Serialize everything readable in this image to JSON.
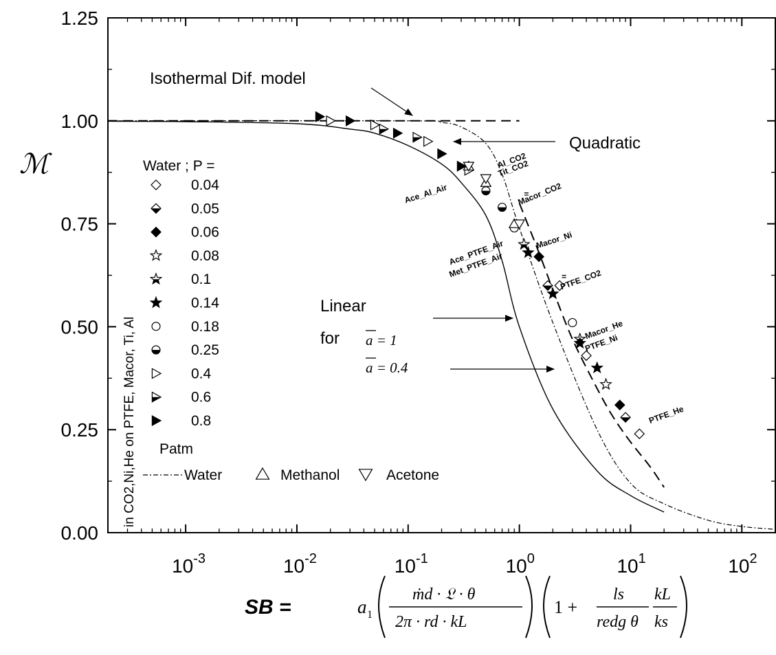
{
  "chart_data": {
    "type": "scatter",
    "x_scale": "log",
    "xlim": [
      0.0002,
      200
    ],
    "ylim": [
      0,
      1.25
    ],
    "x_ticks": [
      {
        "value": 0.001,
        "base": "10",
        "exp": "-3"
      },
      {
        "value": 0.01,
        "base": "10",
        "exp": "-2"
      },
      {
        "value": 0.1,
        "base": "10",
        "exp": "-1"
      },
      {
        "value": 1,
        "base": "10",
        "exp": "0"
      },
      {
        "value": 10,
        "base": "10",
        "exp": "1"
      },
      {
        "value": 100,
        "base": "10",
        "exp": "2"
      }
    ],
    "y_ticks": [
      {
        "value": 0,
        "label": "0.00"
      },
      {
        "value": 0.25,
        "label": "0.25"
      },
      {
        "value": 0.5,
        "label": "0.50"
      },
      {
        "value": 0.75,
        "label": "0.75"
      },
      {
        "value": 1.0,
        "label": "1.00"
      },
      {
        "value": 1.25,
        "label": "1.25"
      }
    ],
    "ylabel": "ℳ",
    "xlabel": {
      "prefix": "SB =",
      "a": "a",
      "a_sub": "1",
      "num1": "ṁd · 𝔏 · θ",
      "den1": "2π · rd · kL",
      "one": "1 +",
      "num2": "ls",
      "den2": "redg θ",
      "num3": "kL",
      "den3": "ks"
    },
    "side_label": "in CO2,Ni,He on PTFE, Macor, Ti, Al",
    "legend": {
      "title": "Water ; P =",
      "entries": [
        {
          "label": "0.04",
          "marker": "diamond-open"
        },
        {
          "label": "0.05",
          "marker": "diamond-half"
        },
        {
          "label": "0.06",
          "marker": "diamond-filled"
        },
        {
          "label": "0.08",
          "marker": "star-open"
        },
        {
          "label": "0.1",
          "marker": "star-half"
        },
        {
          "label": "0.14",
          "marker": "star-filled"
        },
        {
          "label": "0.18",
          "marker": "circle-open"
        },
        {
          "label": "0.25",
          "marker": "circle-half"
        },
        {
          "label": "0.4",
          "marker": "tri-right-open"
        },
        {
          "label": "0.6",
          "marker": "tri-right-half"
        },
        {
          "label": "0.8",
          "marker": "tri-right-filled"
        }
      ],
      "unit": "Patm",
      "bottom_row": [
        {
          "label": "Water",
          "marker": "dash-dot-line"
        },
        {
          "label": "Methanol",
          "marker": "tri-up-open"
        },
        {
          "label": "Acetone",
          "marker": "tri-down-open"
        }
      ]
    },
    "annotations": {
      "isothermal": "Isothermal Dif. model",
      "quadratic": "Quadratic",
      "linear": "Linear",
      "for": "for",
      "a1": "a = 1",
      "a04": "a = 0.4"
    },
    "curves": [
      {
        "name": "Isothermal Dif. model",
        "style": "dashed",
        "points": [
          [
            0.0002,
            1.0
          ],
          [
            1.0,
            1.0
          ]
        ]
      },
      {
        "name": "Linear a = 1",
        "style": "solid",
        "points": [
          [
            0.0002,
            0.999
          ],
          [
            0.001,
            0.998
          ],
          [
            0.01,
            0.993
          ],
          [
            0.03,
            0.98
          ],
          [
            0.05,
            0.97
          ],
          [
            0.1,
            0.94
          ],
          [
            0.2,
            0.895
          ],
          [
            0.3,
            0.85
          ],
          [
            0.5,
            0.77
          ],
          [
            0.7,
            0.66
          ],
          [
            1.0,
            0.5
          ],
          [
            2.0,
            0.3
          ],
          [
            5.0,
            0.15
          ],
          [
            10.0,
            0.09
          ],
          [
            20.0,
            0.05
          ]
        ]
      },
      {
        "name": "Quadratic",
        "style": "dash-dot",
        "points": [
          [
            0.0002,
            1.0
          ],
          [
            0.1,
            1.0
          ],
          [
            0.2,
            0.996
          ],
          [
            0.3,
            0.985
          ],
          [
            0.5,
            0.945
          ],
          [
            0.7,
            0.87
          ],
          [
            1.0,
            0.74
          ],
          [
            2.0,
            0.51
          ],
          [
            5.0,
            0.25
          ],
          [
            10.0,
            0.12
          ],
          [
            20.0,
            0.07
          ],
          [
            50.0,
            0.03
          ],
          [
            100.0,
            0.015
          ],
          [
            200.0,
            0.008
          ]
        ]
      },
      {
        "name": "Linear a = 0.4",
        "style": "dashed",
        "points": [
          [
            1.0,
            0.8
          ],
          [
            1.5,
            0.68
          ],
          [
            2.0,
            0.59
          ],
          [
            3.0,
            0.47
          ],
          [
            5.0,
            0.35
          ],
          [
            7.0,
            0.28
          ],
          [
            10.0,
            0.22
          ],
          [
            15.0,
            0.16
          ],
          [
            20.0,
            0.11
          ]
        ]
      }
    ],
    "series": [
      {
        "name": "0.04",
        "marker": "diamond-open",
        "points": [
          [
            2.3,
            0.6
          ],
          [
            4.0,
            0.43
          ],
          [
            12.0,
            0.24
          ]
        ]
      },
      {
        "name": "0.05",
        "marker": "diamond-half",
        "points": [
          [
            1.8,
            0.6
          ],
          [
            9.0,
            0.28
          ]
        ]
      },
      {
        "name": "0.06",
        "marker": "diamond-filled",
        "points": [
          [
            1.5,
            0.67
          ],
          [
            8.0,
            0.31
          ]
        ]
      },
      {
        "name": "0.08",
        "marker": "star-open",
        "points": [
          [
            6.0,
            0.36
          ]
        ]
      },
      {
        "name": "0.1",
        "marker": "star-half",
        "points": [
          [
            1.1,
            0.7
          ],
          [
            3.5,
            0.47
          ]
        ]
      },
      {
        "name": "0.14",
        "marker": "star-filled",
        "points": [
          [
            1.2,
            0.68
          ],
          [
            2.0,
            0.58
          ],
          [
            3.5,
            0.46
          ],
          [
            5.0,
            0.4
          ]
        ]
      },
      {
        "name": "0.18",
        "marker": "circle-open",
        "points": [
          [
            0.9,
            0.74
          ],
          [
            3.0,
            0.51
          ]
        ]
      },
      {
        "name": "0.25",
        "marker": "circle-half",
        "points": [
          [
            0.5,
            0.83
          ],
          [
            0.7,
            0.79
          ]
        ]
      },
      {
        "name": "0.4",
        "marker": "tri-right-open",
        "points": [
          [
            0.02,
            1.0
          ],
          [
            0.05,
            0.99
          ],
          [
            0.15,
            0.95
          ],
          [
            0.35,
            0.88
          ]
        ]
      },
      {
        "name": "0.6",
        "marker": "tri-right-half",
        "points": [
          [
            0.06,
            0.98
          ],
          [
            0.12,
            0.96
          ]
        ]
      },
      {
        "name": "0.8",
        "marker": "tri-right-filled",
        "points": [
          [
            0.016,
            1.01
          ],
          [
            0.03,
            1.0
          ],
          [
            0.08,
            0.97
          ],
          [
            0.2,
            0.92
          ],
          [
            0.3,
            0.89
          ]
        ]
      },
      {
        "name": "Methanol",
        "marker": "tri-up-open",
        "points": [
          [
            0.35,
            0.89
          ],
          [
            0.5,
            0.85
          ],
          [
            0.9,
            0.75
          ]
        ]
      },
      {
        "name": "Acetone",
        "marker": "tri-down-open",
        "points": [
          [
            0.35,
            0.89
          ],
          [
            0.5,
            0.86
          ],
          [
            1.0,
            0.75
          ]
        ]
      }
    ],
    "point_labels": [
      {
        "text": "Ace_Al_Air",
        "x": 0.095,
        "y": 0.8,
        "rotate": -18
      },
      {
        "text": "Al_CO2",
        "x": 0.65,
        "y": 0.885,
        "rotate": -20
      },
      {
        "text": "Tit_CO2",
        "x": 0.66,
        "y": 0.865,
        "rotate": -20
      },
      {
        "text": "Macor_CO2",
        "x": 1.0,
        "y": 0.795,
        "rotate": -22
      },
      {
        "text": "Macor_Ni",
        "x": 1.45,
        "y": 0.69,
        "rotate": -18
      },
      {
        "text": "Ace_PTFE_Air",
        "x": 0.24,
        "y": 0.65,
        "rotate": -20
      },
      {
        "text": "Met_PTFE_Air",
        "x": 0.24,
        "y": 0.62,
        "rotate": -20
      },
      {
        "text": "=",
        "x": 2.4,
        "y": 0.615,
        "rotate": 0
      },
      {
        "text": "PTFE_CO2",
        "x": 2.4,
        "y": 0.59,
        "rotate": -20
      },
      {
        "text": "Macor_He",
        "x": 4.0,
        "y": 0.47,
        "rotate": -20
      },
      {
        "text": "PTFE_Ni",
        "x": 4.0,
        "y": 0.44,
        "rotate": -20
      },
      {
        "text": "PTFE_He",
        "x": 15.0,
        "y": 0.265,
        "rotate": -20
      },
      {
        "text": "=",
        "x": 1.1,
        "y": 0.815,
        "rotate": 0
      }
    ]
  }
}
